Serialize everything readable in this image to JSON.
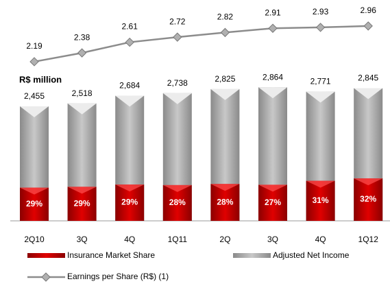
{
  "chart_data": {
    "type": "bar",
    "unit_label": "R$ million",
    "categories": [
      "2Q10",
      "3Q",
      "4Q",
      "1Q11",
      "2Q",
      "3Q",
      "4Q",
      "1Q12"
    ],
    "series": [
      {
        "name": "Insurance Market Share",
        "color": "#c00000",
        "values": [
          29,
          29,
          29,
          28,
          28,
          27,
          31,
          32
        ],
        "value_labels": [
          "29%",
          "29%",
          "29%",
          "28%",
          "28%",
          "27%",
          "31%",
          "32%"
        ]
      },
      {
        "name": "Adjusted Net Income",
        "color": "#a6a6a6",
        "values": [
          2455,
          2518,
          2684,
          2738,
          2825,
          2864,
          2771,
          2845
        ],
        "value_labels": [
          "2,455",
          "2,518",
          "2,684",
          "2,738",
          "2,825",
          "2,864",
          "2,771",
          "2,845"
        ]
      },
      {
        "name": "Earnings per Share (R$) (1)",
        "type": "line",
        "color": "#8c8c8c",
        "values": [
          2.19,
          2.38,
          2.61,
          2.72,
          2.82,
          2.91,
          2.93,
          2.96
        ]
      }
    ]
  }
}
